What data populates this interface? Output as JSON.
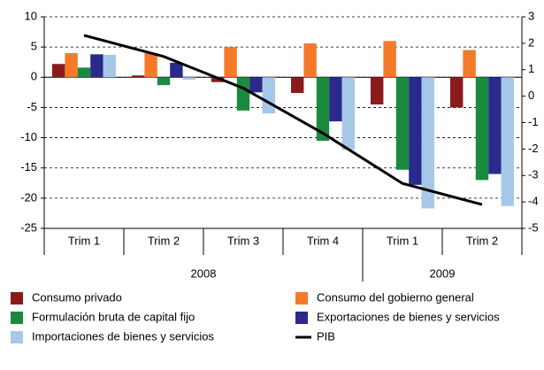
{
  "chart_data": {
    "type": "bar",
    "categories": [
      "Trim 1",
      "Trim 2",
      "Trim 3",
      "Trim 4",
      "Trim 1",
      "Trim 2"
    ],
    "category_groups": [
      "2008",
      "2008",
      "2008",
      "2008",
      "2009",
      "2009"
    ],
    "series": [
      {
        "name": "Consumo privado",
        "color": "#8b1a1a",
        "values": [
          2.2,
          0.3,
          -0.8,
          -2.6,
          -4.5,
          -5
        ]
      },
      {
        "name": "Consumo del gobierno general",
        "color": "#f47a2a",
        "values": [
          4,
          4,
          5,
          5.6,
          6,
          4.5
        ]
      },
      {
        "name": "Formulación bruta de capital fijo",
        "color": "#1a8a3e",
        "values": [
          1.6,
          -1.3,
          -5.5,
          -10.5,
          -15.3,
          -17
        ]
      },
      {
        "name": "Exportaciones de bienes y servicios",
        "color": "#2a2a8c",
        "values": [
          3.8,
          2.4,
          -2.5,
          -7.3,
          -17.8,
          -16
        ]
      },
      {
        "name": "Importaciones de bienes y servicios",
        "color": "#a6c8e8",
        "values": [
          3.7,
          -0.4,
          -6,
          -12,
          -21.7,
          -21.3
        ]
      },
      {
        "name": "PIB",
        "color": "#000000",
        "type": "line",
        "axis": "y2",
        "values": [
          2.3,
          1.5,
          0.3,
          -1.4,
          -3.3,
          -4.1
        ]
      }
    ],
    "ylim": [
      -25,
      10
    ],
    "yticks": [
      10,
      5,
      0,
      -5,
      -10,
      -15,
      -20,
      -25
    ],
    "y2lim": [
      -5,
      3
    ],
    "y2ticks": [
      3,
      2,
      1,
      0,
      -1,
      -2,
      -3,
      -4,
      -5
    ],
    "grid": true
  }
}
